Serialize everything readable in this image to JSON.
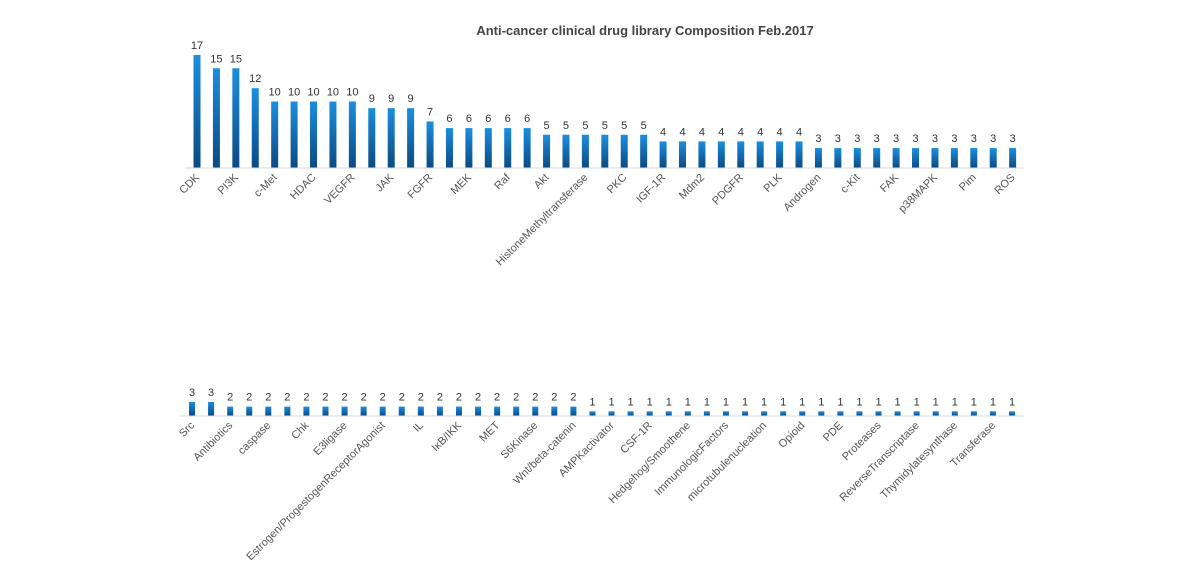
{
  "chart_data": [
    {
      "type": "bar",
      "title": "Anti-cancer clinical drug library Composition Feb.2017",
      "categories": [
        "CDK",
        null,
        "PI3K",
        null,
        "c-Met",
        null,
        "HDAC",
        null,
        "VEGFR",
        null,
        "JAK",
        null,
        "FGFR",
        null,
        "MEK",
        null,
        "Raf",
        null,
        "Akt",
        null,
        "HistoneMethyltransferase",
        null,
        "PKC",
        null,
        "IGF-1R",
        null,
        "Mdm2",
        null,
        "PDGFR",
        null,
        "PLK",
        null,
        "Androgen",
        null,
        "c-Kit",
        null,
        "FAK",
        null,
        "p38MAPK",
        null,
        "Pim",
        null,
        "ROS"
      ],
      "values": [
        17,
        15,
        15,
        12,
        10,
        10,
        10,
        10,
        10,
        9,
        9,
        9,
        7,
        6,
        6,
        6,
        6,
        6,
        5,
        5,
        5,
        5,
        5,
        5,
        4,
        4,
        4,
        4,
        4,
        4,
        4,
        4,
        3,
        3,
        3,
        3,
        3,
        3,
        3,
        3,
        3,
        3,
        3
      ],
      "color": "#1b8ee0"
    },
    {
      "type": "bar",
      "categories": [
        "Src",
        null,
        "Antibiotics",
        null,
        "caspase",
        null,
        "Chk",
        null,
        "E3ligase",
        null,
        "Estrogen/ProgestogenReceptorAgonist",
        null,
        "IL",
        null,
        "IκB/IKK",
        null,
        "MET",
        null,
        "S6Kinase",
        null,
        "Wnt/beta-catenin",
        null,
        "AMPKactivator",
        null,
        "CSF-1R",
        null,
        "Hedgehog/Smoothene",
        null,
        "ImmunologicFactors",
        null,
        "microtubulenucleation",
        null,
        "Opioid",
        null,
        "PDE",
        null,
        "Proteases",
        null,
        "ReverseTranscriptase",
        null,
        "Thymidylatesynthase",
        null,
        "Transferase",
        null
      ],
      "values": [
        3,
        3,
        2,
        2,
        2,
        2,
        2,
        2,
        2,
        2,
        2,
        2,
        2,
        2,
        2,
        2,
        2,
        2,
        2,
        2,
        2,
        1,
        1,
        1,
        1,
        1,
        1,
        1,
        1,
        1,
        1,
        1,
        1,
        1,
        1,
        1,
        1,
        1,
        1,
        1,
        1,
        1,
        1,
        1
      ],
      "color": "#1b8ee0"
    }
  ]
}
